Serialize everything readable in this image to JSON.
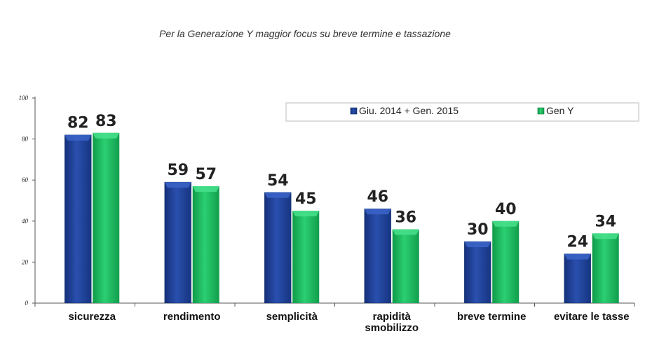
{
  "title": "Per la Generazione Y maggior focus su breve termine e tassazione",
  "colors": {
    "series1": "#1f3f93",
    "series2": "#18b259",
    "axis": "#555555"
  },
  "chart_data": {
    "type": "bar",
    "title": "Per la Generazione Y maggior focus su breve termine e tassazione",
    "categories": [
      [
        "sicurezza"
      ],
      [
        "rendimento"
      ],
      [
        "semplicità"
      ],
      [
        "rapidità",
        "smobilizzo"
      ],
      [
        "breve termine"
      ],
      [
        "evitare le tasse"
      ]
    ],
    "series": [
      {
        "name": "Giu. 2014 + Gen. 2015",
        "values": [
          82,
          59,
          54,
          46,
          30,
          24
        ]
      },
      {
        "name": "Gen Y",
        "values": [
          83,
          57,
          45,
          36,
          40,
          34
        ]
      }
    ],
    "ylim": [
      0,
      100
    ],
    "yticks": [
      0,
      20,
      40,
      60,
      80,
      100
    ],
    "xlabel": "",
    "ylabel": "",
    "grid": false,
    "legend": "top-right",
    "data_labels": true
  }
}
